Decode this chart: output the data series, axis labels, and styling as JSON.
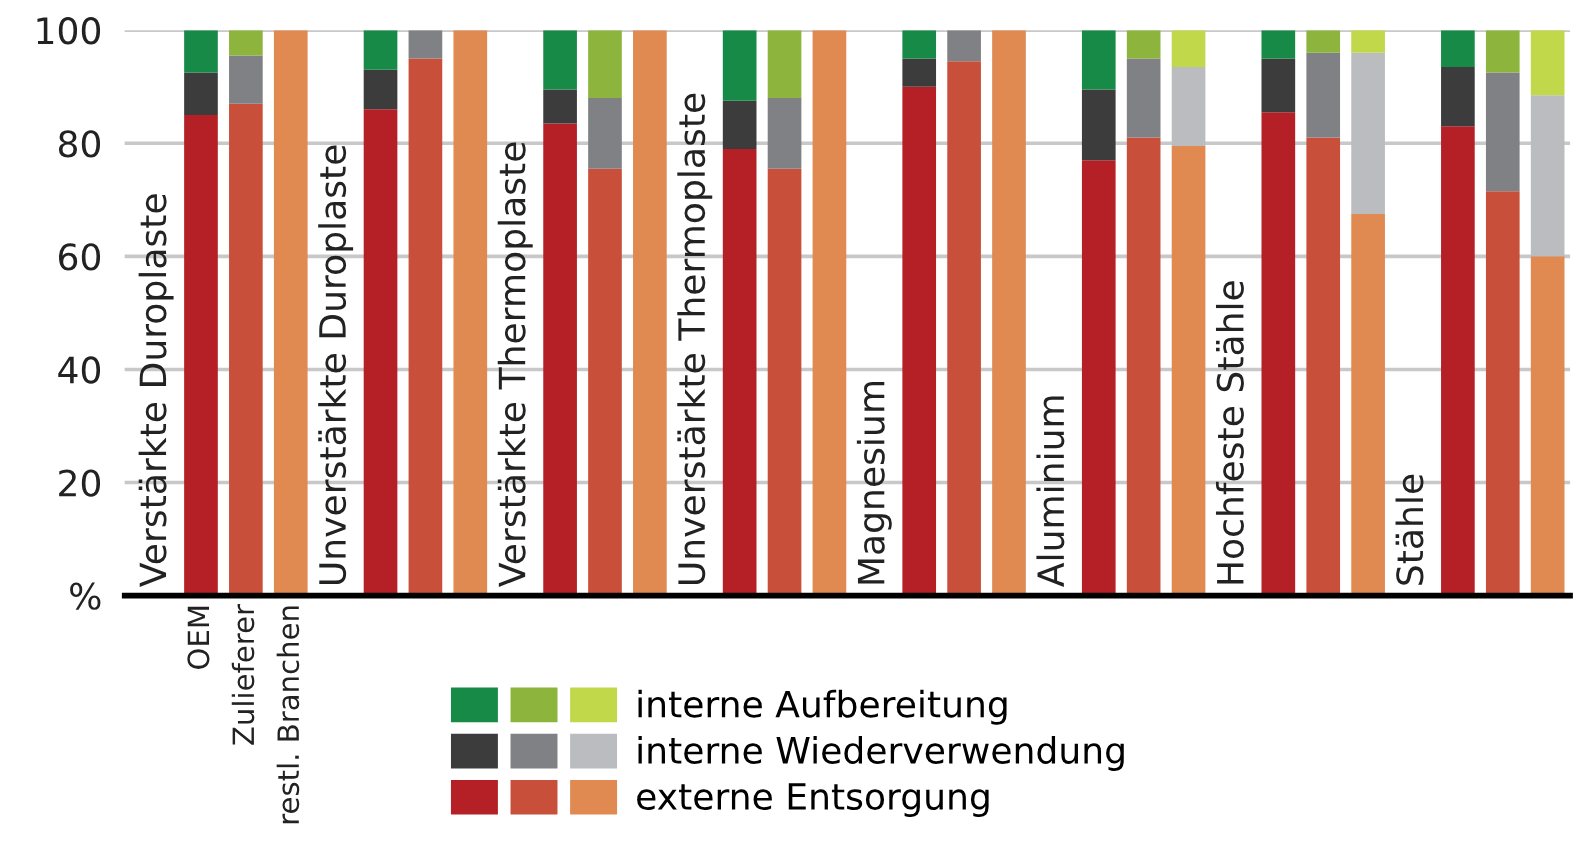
{
  "chart_data": {
    "type": "bar",
    "stacked": true,
    "categories": [
      null,
      "OEM",
      "Zulieferer",
      "restl. Branchen",
      null,
      null,
      null,
      null,
      null,
      null,
      null,
      null,
      null,
      null,
      null,
      null,
      null,
      null,
      null,
      null,
      null,
      null,
      null,
      null,
      null,
      null,
      null,
      null,
      null,
      null,
      null,
      null
    ],
    "series": [
      {
        "name": "externe Entsorgung",
        "colors": [
          null,
          "#b51f26",
          "#c8503a",
          "#e08950",
          null,
          "#b51f26",
          "#c8503a",
          "#e08950",
          null,
          "#b51f26",
          "#c8503a",
          "#e08950",
          null,
          "#b51f26",
          "#c8503a",
          "#e08950",
          null,
          "#b51f26",
          "#c8503a",
          "#e08950",
          null,
          "#b51f26",
          "#c8503a",
          "#e08950",
          null,
          "#b51f26",
          "#c8503a",
          "#e08950",
          null,
          "#b51f26",
          "#c8503a",
          "#e08950"
        ],
        "values": [
          null,
          85,
          87,
          100,
          null,
          86,
          95,
          100,
          null,
          83.5,
          75.5,
          100,
          null,
          79,
          75.5,
          100,
          null,
          90,
          94.5,
          100,
          null,
          77,
          81,
          79.5,
          null,
          85.5,
          81,
          67.5,
          null,
          83,
          71.5,
          60
        ]
      },
      {
        "name": "interne Wiederverwendung",
        "colors": [
          null,
          "#3c3c3c",
          "#808185",
          "#bbbcbf",
          null,
          "#3c3c3c",
          "#808185",
          "#bbbcbf",
          null,
          "#3c3c3c",
          "#808185",
          "#bbbcbf",
          null,
          "#3c3c3c",
          "#808185",
          "#bbbcbf",
          null,
          "#3c3c3c",
          "#808185",
          "#bbbcbf",
          null,
          "#3c3c3c",
          "#808185",
          "#bbbcbf",
          null,
          "#3c3c3c",
          "#808185",
          "#bbbcbf",
          null,
          "#3c3c3c",
          "#808185",
          "#bbbcbf"
        ],
        "values": [
          null,
          7.5,
          8.5,
          0,
          null,
          7,
          5,
          0,
          null,
          6,
          12.5,
          0,
          null,
          8.5,
          12.5,
          0,
          null,
          5,
          5.5,
          0,
          null,
          12.5,
          14,
          14,
          null,
          9.5,
          15,
          28.5,
          null,
          10.5,
          21,
          28.5
        ]
      },
      {
        "name": "interne Aufbereitung",
        "colors": [
          null,
          "#178a47",
          "#8db43d",
          "#c0d84a",
          null,
          "#178a47",
          "#8db43d",
          "#c0d84a",
          null,
          "#178a47",
          "#8db43d",
          "#c0d84a",
          null,
          "#178a47",
          "#8db43d",
          "#c0d84a",
          null,
          "#178a47",
          "#8db43d",
          "#c0d84a",
          null,
          "#178a47",
          "#8db43d",
          "#c0d84a",
          null,
          "#178a47",
          "#8db43d",
          "#c0d84a",
          null,
          "#178a47",
          "#8db43d",
          "#c0d84a"
        ],
        "values": [
          null,
          7.5,
          4.5,
          0,
          null,
          7,
          0,
          0,
          null,
          10.5,
          12,
          0,
          null,
          12.5,
          12,
          0,
          null,
          5,
          0,
          0,
          null,
          10.5,
          5,
          6.5,
          null,
          5,
          4,
          4,
          null,
          6.5,
          7.5,
          11.5
        ]
      }
    ],
    "annotations": [
      "Verstärkte Duroplaste",
      "Unverstärkte Duroplaste",
      "Verstärkte Thermoplaste",
      "Unverstärkte Thermoplaste",
      "Magnesium",
      "Aluminium",
      "Hochfeste Stähle",
      "Stähle"
    ],
    "ylim": [
      0,
      100
    ],
    "yticks": [
      {
        "value": 0,
        "label": "%"
      },
      20,
      40,
      60,
      80,
      100
    ],
    "grid": "y",
    "legend": "bottom"
  }
}
